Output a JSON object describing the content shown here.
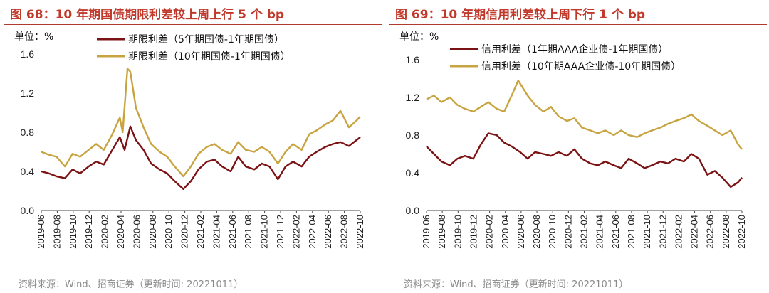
{
  "colors": {
    "series_dark": "#7B1213",
    "series_gold": "#C8A440",
    "title": "#C0392B",
    "rule": "#B03A2E",
    "source": "#8A8A8A"
  },
  "left": {
    "title": "图 68：10 年期国债期限利差较上周上行 5 个 bp",
    "source": "资料来源：Wind、招商证券（更新时间: 20221011）"
  },
  "right": {
    "title": "图 69：10 年期信用利差较上周下行 1 个 bp",
    "source": "资料来源：Wind、招商证券（更新时间: 20221011）"
  },
  "chart_data": [
    {
      "type": "line",
      "unit": "单位：%",
      "ylim": [
        0,
        1.6
      ],
      "yticks": [
        "1.6",
        "1.2",
        "0.8",
        "0.4",
        "0.0"
      ],
      "xticks": [
        "2019-06",
        "2019-08",
        "2019-10",
        "2019-12",
        "2020-02",
        "2020-04",
        "2020-06",
        "2020-08",
        "2020-10",
        "2020-12",
        "2021-02",
        "2021-04",
        "2021-06",
        "2021-08",
        "2021-10",
        "2021-12",
        "2022-02",
        "2022-04",
        "2022-06",
        "2022-08",
        "2022-10"
      ],
      "x_range": [
        2019.42,
        2022.79
      ],
      "series": [
        {
          "name": "期限利差（5年期国债-1年期国债）",
          "color": "#7B1213",
          "points": [
            [
              2019.42,
              0.4
            ],
            [
              2019.5,
              0.38
            ],
            [
              2019.58,
              0.35
            ],
            [
              2019.67,
              0.33
            ],
            [
              2019.75,
              0.42
            ],
            [
              2019.83,
              0.38
            ],
            [
              2019.92,
              0.45
            ],
            [
              2020.0,
              0.5
            ],
            [
              2020.08,
              0.47
            ],
            [
              2020.17,
              0.62
            ],
            [
              2020.25,
              0.75
            ],
            [
              2020.3,
              0.62
            ],
            [
              2020.36,
              0.86
            ],
            [
              2020.42,
              0.72
            ],
            [
              2020.5,
              0.62
            ],
            [
              2020.58,
              0.48
            ],
            [
              2020.67,
              0.42
            ],
            [
              2020.75,
              0.38
            ],
            [
              2020.83,
              0.3
            ],
            [
              2020.92,
              0.22
            ],
            [
              2021.0,
              0.3
            ],
            [
              2021.08,
              0.42
            ],
            [
              2021.17,
              0.5
            ],
            [
              2021.25,
              0.52
            ],
            [
              2021.33,
              0.45
            ],
            [
              2021.42,
              0.4
            ],
            [
              2021.5,
              0.55
            ],
            [
              2021.58,
              0.45
            ],
            [
              2021.67,
              0.42
            ],
            [
              2021.75,
              0.48
            ],
            [
              2021.83,
              0.45
            ],
            [
              2021.92,
              0.32
            ],
            [
              2022.0,
              0.45
            ],
            [
              2022.08,
              0.5
            ],
            [
              2022.17,
              0.45
            ],
            [
              2022.25,
              0.55
            ],
            [
              2022.33,
              0.6
            ],
            [
              2022.42,
              0.65
            ],
            [
              2022.5,
              0.68
            ],
            [
              2022.58,
              0.7
            ],
            [
              2022.67,
              0.66
            ],
            [
              2022.75,
              0.72
            ],
            [
              2022.79,
              0.75
            ]
          ]
        },
        {
          "name": "期限利差（10年期国债-1年期国债）",
          "color": "#C8A440",
          "points": [
            [
              2019.42,
              0.6
            ],
            [
              2019.5,
              0.57
            ],
            [
              2019.58,
              0.55
            ],
            [
              2019.67,
              0.45
            ],
            [
              2019.75,
              0.58
            ],
            [
              2019.83,
              0.55
            ],
            [
              2019.92,
              0.62
            ],
            [
              2020.0,
              0.68
            ],
            [
              2020.08,
              0.62
            ],
            [
              2020.17,
              0.78
            ],
            [
              2020.25,
              0.95
            ],
            [
              2020.28,
              0.8
            ],
            [
              2020.33,
              1.45
            ],
            [
              2020.36,
              1.42
            ],
            [
              2020.42,
              1.05
            ],
            [
              2020.5,
              0.85
            ],
            [
              2020.58,
              0.68
            ],
            [
              2020.67,
              0.6
            ],
            [
              2020.75,
              0.55
            ],
            [
              2020.83,
              0.45
            ],
            [
              2020.92,
              0.35
            ],
            [
              2021.0,
              0.45
            ],
            [
              2021.08,
              0.58
            ],
            [
              2021.17,
              0.65
            ],
            [
              2021.25,
              0.68
            ],
            [
              2021.33,
              0.62
            ],
            [
              2021.42,
              0.58
            ],
            [
              2021.5,
              0.7
            ],
            [
              2021.58,
              0.62
            ],
            [
              2021.67,
              0.6
            ],
            [
              2021.75,
              0.65
            ],
            [
              2021.83,
              0.6
            ],
            [
              2021.92,
              0.48
            ],
            [
              2022.0,
              0.6
            ],
            [
              2022.08,
              0.68
            ],
            [
              2022.17,
              0.62
            ],
            [
              2022.25,
              0.78
            ],
            [
              2022.33,
              0.82
            ],
            [
              2022.42,
              0.88
            ],
            [
              2022.5,
              0.92
            ],
            [
              2022.58,
              1.02
            ],
            [
              2022.67,
              0.85
            ],
            [
              2022.75,
              0.92
            ],
            [
              2022.79,
              0.96
            ]
          ]
        }
      ]
    },
    {
      "type": "line",
      "unit": "单位：%",
      "ylim": [
        0,
        1.6
      ],
      "yticks": [
        "1.6",
        "1.2",
        "0.8",
        "0.4",
        "0.0"
      ],
      "xticks": [
        "2019-06",
        "2019-08",
        "2019-10",
        "2019-12",
        "2020-02",
        "2020-04",
        "2020-06",
        "2020-08",
        "2020-10",
        "2020-12",
        "2021-02",
        "2021-04",
        "2021-06",
        "2021-08",
        "2021-10",
        "2021-12",
        "2022-02",
        "2022-04",
        "2022-06",
        "2022-08",
        "2022-10"
      ],
      "x_range": [
        2019.42,
        2022.79
      ],
      "series": [
        {
          "name": "信用利差（1年期AAA企业债-1年期国债）",
          "color": "#7B1213",
          "points": [
            [
              2019.42,
              0.68
            ],
            [
              2019.5,
              0.6
            ],
            [
              2019.58,
              0.52
            ],
            [
              2019.67,
              0.48
            ],
            [
              2019.75,
              0.55
            ],
            [
              2019.83,
              0.58
            ],
            [
              2019.92,
              0.55
            ],
            [
              2020.0,
              0.7
            ],
            [
              2020.08,
              0.82
            ],
            [
              2020.17,
              0.8
            ],
            [
              2020.25,
              0.72
            ],
            [
              2020.33,
              0.68
            ],
            [
              2020.42,
              0.62
            ],
            [
              2020.5,
              0.55
            ],
            [
              2020.58,
              0.62
            ],
            [
              2020.67,
              0.6
            ],
            [
              2020.75,
              0.58
            ],
            [
              2020.83,
              0.62
            ],
            [
              2020.92,
              0.58
            ],
            [
              2021.0,
              0.65
            ],
            [
              2021.08,
              0.55
            ],
            [
              2021.17,
              0.5
            ],
            [
              2021.25,
              0.48
            ],
            [
              2021.33,
              0.52
            ],
            [
              2021.42,
              0.48
            ],
            [
              2021.5,
              0.45
            ],
            [
              2021.58,
              0.55
            ],
            [
              2021.67,
              0.5
            ],
            [
              2021.75,
              0.45
            ],
            [
              2021.83,
              0.48
            ],
            [
              2021.92,
              0.52
            ],
            [
              2022.0,
              0.5
            ],
            [
              2022.08,
              0.55
            ],
            [
              2022.17,
              0.52
            ],
            [
              2022.25,
              0.6
            ],
            [
              2022.33,
              0.55
            ],
            [
              2022.42,
              0.38
            ],
            [
              2022.5,
              0.42
            ],
            [
              2022.58,
              0.35
            ],
            [
              2022.67,
              0.25
            ],
            [
              2022.75,
              0.3
            ],
            [
              2022.79,
              0.35
            ]
          ]
        },
        {
          "name": "信用利差（10年期AAA企业债-10年期国债）",
          "color": "#C8A440",
          "points": [
            [
              2019.42,
              1.18
            ],
            [
              2019.5,
              1.22
            ],
            [
              2019.58,
              1.15
            ],
            [
              2019.67,
              1.2
            ],
            [
              2019.75,
              1.12
            ],
            [
              2019.83,
              1.08
            ],
            [
              2019.92,
              1.05
            ],
            [
              2020.0,
              1.1
            ],
            [
              2020.08,
              1.15
            ],
            [
              2020.17,
              1.08
            ],
            [
              2020.25,
              1.05
            ],
            [
              2020.33,
              1.22
            ],
            [
              2020.4,
              1.38
            ],
            [
              2020.45,
              1.3
            ],
            [
              2020.5,
              1.22
            ],
            [
              2020.58,
              1.12
            ],
            [
              2020.67,
              1.05
            ],
            [
              2020.75,
              1.1
            ],
            [
              2020.83,
              1.0
            ],
            [
              2020.92,
              0.95
            ],
            [
              2021.0,
              0.98
            ],
            [
              2021.08,
              0.88
            ],
            [
              2021.17,
              0.85
            ],
            [
              2021.25,
              0.82
            ],
            [
              2021.33,
              0.85
            ],
            [
              2021.42,
              0.8
            ],
            [
              2021.5,
              0.85
            ],
            [
              2021.58,
              0.8
            ],
            [
              2021.67,
              0.78
            ],
            [
              2021.75,
              0.82
            ],
            [
              2021.83,
              0.85
            ],
            [
              2021.92,
              0.88
            ],
            [
              2022.0,
              0.92
            ],
            [
              2022.08,
              0.95
            ],
            [
              2022.17,
              0.98
            ],
            [
              2022.25,
              1.02
            ],
            [
              2022.33,
              0.95
            ],
            [
              2022.42,
              0.9
            ],
            [
              2022.5,
              0.85
            ],
            [
              2022.58,
              0.8
            ],
            [
              2022.67,
              0.85
            ],
            [
              2022.75,
              0.7
            ],
            [
              2022.79,
              0.65
            ]
          ]
        }
      ]
    }
  ]
}
